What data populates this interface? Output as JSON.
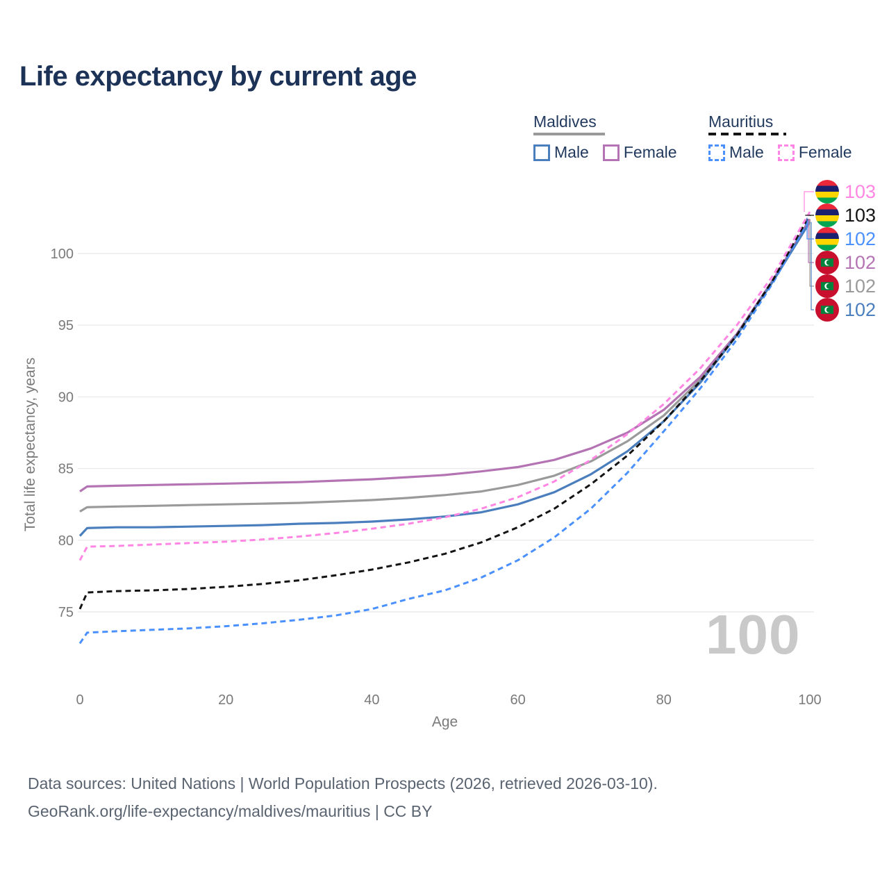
{
  "title": "Life expectancy by current age",
  "watermark": "100",
  "legend": {
    "groups": [
      {
        "name": "Maldives",
        "underline_style": "solid",
        "underline_color": "#9a9a9a",
        "items": [
          {
            "label": "Male",
            "color": "#4a7ebc",
            "dashed": false
          },
          {
            "label": "Female",
            "color": "#b474b4",
            "dashed": false
          }
        ]
      },
      {
        "name": "Mauritius",
        "underline_style": "dashed",
        "underline_color": "#141414",
        "items": [
          {
            "label": "Male",
            "color": "#4a90fe",
            "dashed": true
          },
          {
            "label": "Female",
            "color": "#ff86e3",
            "dashed": true
          }
        ]
      }
    ]
  },
  "chart_data": {
    "type": "line",
    "title": "Life expectancy by current age",
    "xlabel": "Age",
    "ylabel": "Total life expectancy, years",
    "xlim": [
      0,
      100
    ],
    "ylim": [
      72,
      104
    ],
    "xticks": [
      0,
      20,
      40,
      60,
      80,
      100
    ],
    "yticks": [
      75,
      80,
      85,
      90,
      95,
      100
    ],
    "grid": "horizontal-only",
    "legend_position": "top-right",
    "x": [
      0,
      1,
      5,
      10,
      15,
      20,
      25,
      30,
      35,
      40,
      45,
      50,
      55,
      60,
      65,
      70,
      75,
      80,
      85,
      90,
      95,
      100
    ],
    "series": [
      {
        "name": "Maldives overall",
        "country": "Maldives",
        "sex": "Both",
        "style": "solid",
        "color": "#9a9a9a",
        "flag": "maldives",
        "end_label": "102",
        "label_row": 4,
        "values": [
          82.0,
          82.3,
          82.35,
          82.4,
          82.45,
          82.5,
          82.55,
          82.6,
          82.7,
          82.8,
          82.95,
          83.15,
          83.4,
          83.85,
          84.5,
          85.5,
          86.9,
          88.7,
          91.2,
          94.35,
          98.15,
          102.3
        ]
      },
      {
        "name": "Maldives Female",
        "country": "Maldives",
        "sex": "Female",
        "style": "solid",
        "color": "#b474b4",
        "flag": "maldives",
        "end_label": "102",
        "label_row": 3,
        "values": [
          83.4,
          83.75,
          83.8,
          83.85,
          83.9,
          83.95,
          84.0,
          84.05,
          84.15,
          84.25,
          84.4,
          84.55,
          84.8,
          85.1,
          85.6,
          86.4,
          87.5,
          89.1,
          91.4,
          94.4,
          98.2,
          102.4
        ]
      },
      {
        "name": "Maldives Male",
        "country": "Maldives",
        "sex": "Male",
        "style": "solid",
        "color": "#4a7ebc",
        "flag": "maldives",
        "end_label": "102",
        "label_row": 5,
        "values": [
          80.3,
          80.85,
          80.9,
          80.9,
          80.95,
          81.0,
          81.05,
          81.15,
          81.2,
          81.3,
          81.45,
          81.65,
          81.95,
          82.5,
          83.35,
          84.6,
          86.2,
          88.3,
          91.0,
          94.3,
          98.1,
          102.2
        ]
      },
      {
        "name": "Mauritius Male",
        "country": "Mauritius",
        "sex": "Male",
        "style": "dashed",
        "color": "#4a90fe",
        "flag": "mauritius",
        "end_label": "102",
        "label_row": 2,
        "values": [
          72.8,
          73.55,
          73.65,
          73.75,
          73.85,
          74.0,
          74.2,
          74.45,
          74.75,
          75.2,
          75.9,
          76.5,
          77.4,
          78.6,
          80.2,
          82.2,
          84.7,
          87.6,
          90.6,
          94.0,
          98.0,
          102.5
        ]
      },
      {
        "name": "Mauritius overall",
        "country": "Mauritius",
        "sex": "Both",
        "style": "dashed",
        "color": "#141414",
        "flag": "mauritius",
        "end_label": "103",
        "label_row": 1,
        "values": [
          75.2,
          76.35,
          76.45,
          76.5,
          76.6,
          76.75,
          76.95,
          77.2,
          77.55,
          77.95,
          78.45,
          79.05,
          79.85,
          80.9,
          82.2,
          83.9,
          85.9,
          88.3,
          91.1,
          94.3,
          98.2,
          102.7
        ]
      },
      {
        "name": "Mauritius Female",
        "country": "Mauritius",
        "sex": "Female",
        "style": "dashed",
        "color": "#ff86e3",
        "flag": "mauritius",
        "end_label": "103",
        "label_row": 0,
        "values": [
          78.6,
          79.55,
          79.6,
          79.7,
          79.8,
          79.9,
          80.05,
          80.25,
          80.5,
          80.8,
          81.15,
          81.6,
          82.2,
          83.0,
          84.1,
          85.6,
          87.4,
          89.5,
          92.0,
          95.0,
          98.5,
          102.9
        ]
      }
    ],
    "flag_colors": {
      "mauritius_stripes": [
        "#ea2839",
        "#1a206d",
        "#ffd500",
        "#00a551"
      ],
      "maldives_field": "#c8102e",
      "maldives_rect": "#00843d",
      "maldives_crescent": "#ffffff"
    },
    "style_colors": {
      "grid": "#ebebeb",
      "axis_text": "#7a7a7a",
      "title_text": "#1c3357",
      "watermark": "#c9c9c9",
      "footer_text": "#5a6370"
    }
  },
  "footer": {
    "line1": "Data sources: United Nations | World Population Prospects (2026, retrieved 2026-03-10).",
    "line2": "GeoRank.org/life-expectancy/maldives/mauritius | CC BY"
  }
}
